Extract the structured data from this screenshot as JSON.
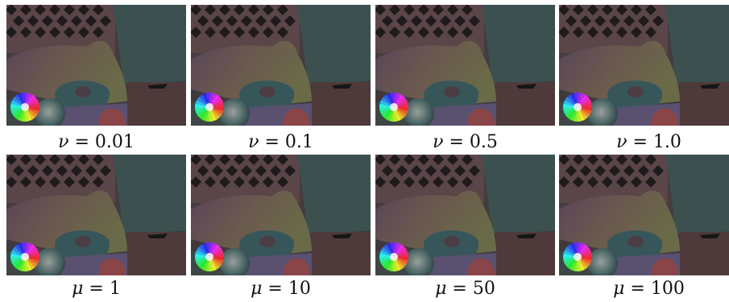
{
  "rows": [
    {
      "panels": [
        {
          "symbol": "ν",
          "value": "0.01"
        },
        {
          "symbol": "ν",
          "value": "0.1"
        },
        {
          "symbol": "ν",
          "value": "0.5"
        },
        {
          "symbol": "ν",
          "value": "1.0"
        }
      ]
    },
    {
      "panels": [
        {
          "symbol": "μ",
          "value": "1"
        },
        {
          "symbol": "μ",
          "value": "10"
        },
        {
          "symbol": "μ",
          "value": "50"
        },
        {
          "symbol": "μ",
          "value": "100"
        }
      ]
    }
  ],
  "colors": {
    "background_dark": "#3f3a3a",
    "lattice": "#5a4548",
    "wall_teal": "#3c5050",
    "leaf_olive": "#6a6a48",
    "leaf_purple": "#5a4458",
    "ring_teal": "#37565a",
    "red_shape": "#8a4548",
    "floor_brown": "#4e3a3a"
  }
}
